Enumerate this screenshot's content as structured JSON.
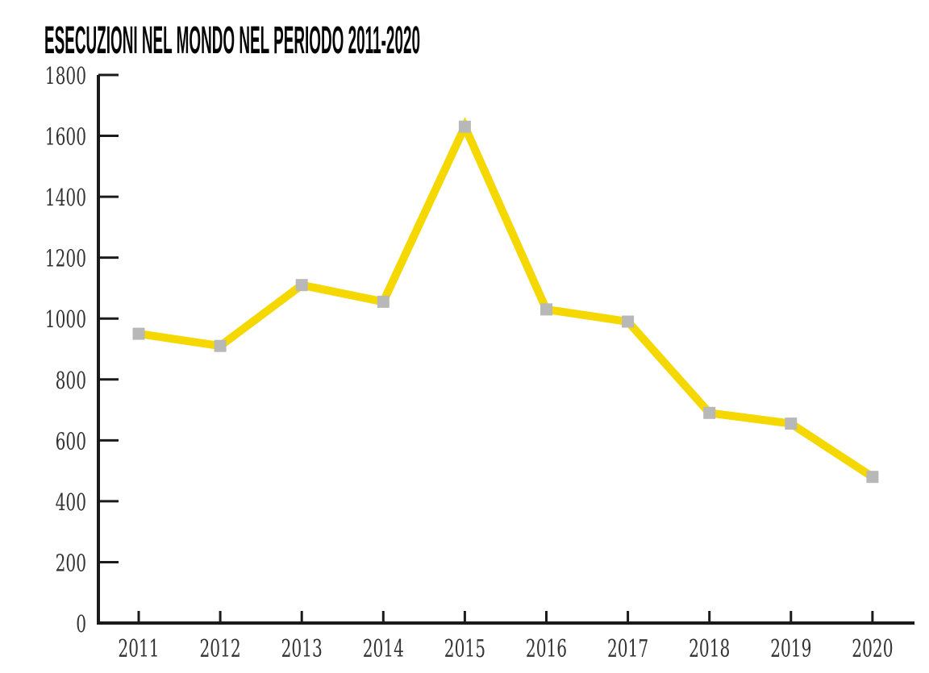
{
  "title": "ESECUZIONI NEL MONDO NEL PERIODO 2011-2020",
  "chart_data": {
    "type": "line",
    "title": "ESECUZIONI NEL MONDO NEL PERIODO 2011-2020",
    "categories": [
      "2011",
      "2012",
      "2013",
      "2014",
      "2015",
      "2016",
      "2017",
      "2018",
      "2019",
      "2020"
    ],
    "series": [
      {
        "name": "Esecuzioni",
        "values": [
          950,
          910,
          1110,
          1055,
          1630,
          1030,
          990,
          690,
          655,
          480
        ]
      }
    ],
    "xlabel": "",
    "ylabel": "",
    "ylim": [
      0,
      1800
    ],
    "ytick_interval": 200,
    "yticks": [
      0,
      200,
      400,
      600,
      800,
      1000,
      1200,
      1400,
      1600,
      1800
    ],
    "grid": false,
    "legend": false,
    "line_color": "#f4d800",
    "marker_shape": "square",
    "marker_color": "#b8b8b8",
    "axis_color": "#1b1b1b",
    "label_color": "#333333",
    "title_color": "#050505",
    "background_color": "#ffffff"
  }
}
